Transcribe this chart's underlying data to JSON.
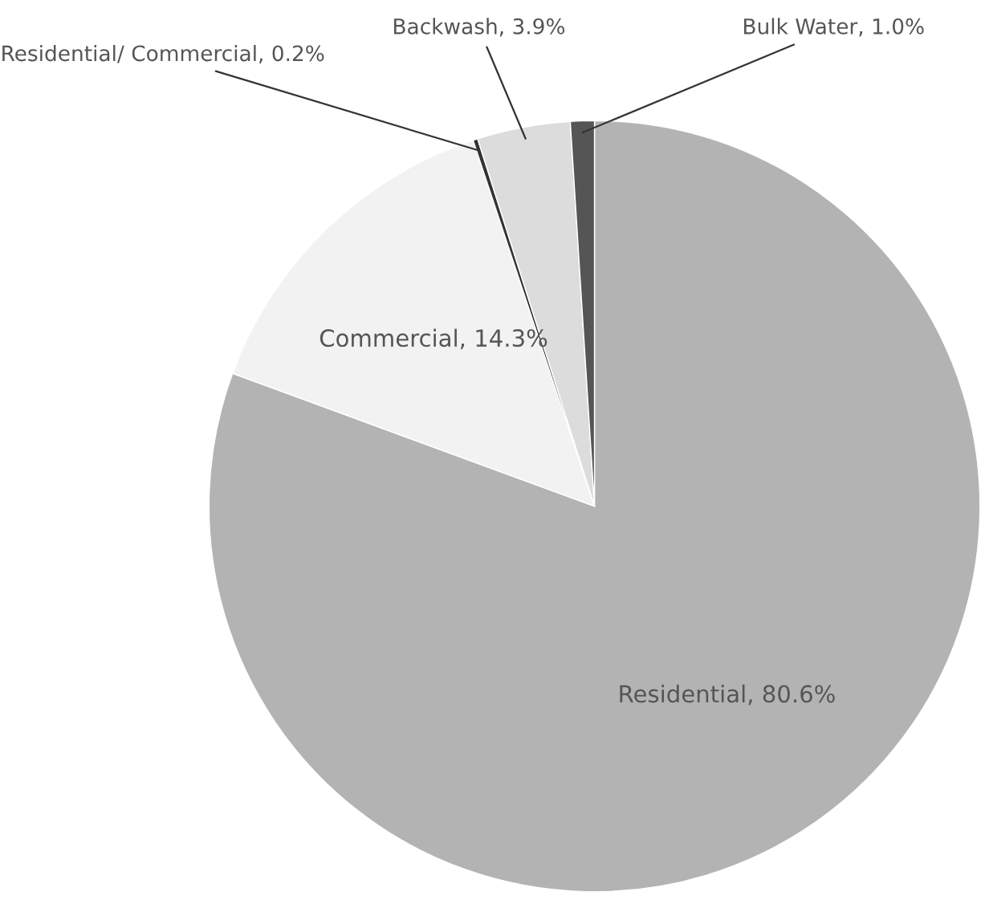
{
  "chart_data": {
    "type": "pie",
    "categories": [
      "Residential",
      "Commercial",
      "Residential/ Commercial",
      "Backwash",
      "Bulk Water"
    ],
    "values": [
      80.6,
      14.3,
      0.2,
      3.9,
      1.0
    ],
    "value_labels": [
      "80.6%",
      "14.3%",
      "0.2%",
      "3.9%",
      "1.0%"
    ],
    "colors": [
      "#b3b3b3",
      "#f2f2f2",
      "#333333",
      "#dcdcdc",
      "#555555"
    ]
  }
}
